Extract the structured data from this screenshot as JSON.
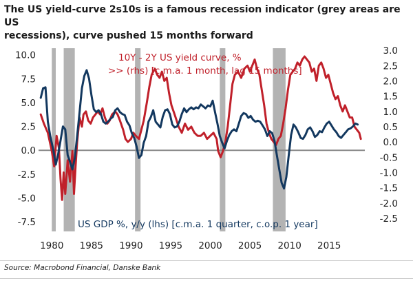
{
  "title_line1": "The US yield-curve 2s10s is a famous recession indicator (grey areas are US",
  "title_line2": "recessions), curve pushed 15 months forward",
  "source": "Source: Macrobond Financial, Danske Bank",
  "chart_data": {
    "type": "line",
    "x_ticks": [
      "1980",
      "1985",
      "1990",
      "1995",
      "2000",
      "2005",
      "2010",
      "2015"
    ],
    "xlim": [
      1978.5,
      2019.5
    ],
    "y_left": {
      "ylim": [
        -8.5,
        10.7
      ],
      "ticks": [
        "10.0",
        "7.5",
        "5.0",
        "2.5",
        "0.0",
        "-2.5",
        "-5.0",
        "-7.5"
      ]
    },
    "y_right": {
      "ylim": [
        -2.93,
        3.07
      ],
      "ticks": [
        "3.0",
        "2.5",
        "2.0",
        "1.5",
        "1.0",
        "0.5",
        "0.0",
        "-0.5",
        "-1.0",
        "-1.5",
        "-2.0",
        "-2.5"
      ]
    },
    "recessions": [
      [
        1980.0,
        1980.5
      ],
      [
        1981.5,
        1982.9
      ],
      [
        1990.5,
        1991.2
      ],
      [
        2001.2,
        2001.9
      ],
      [
        2007.9,
        2009.5
      ]
    ],
    "series": [
      {
        "name": "10Y - 2Y US yield curve, %",
        "legend_line1": "10Y - 2Y US yield curve, %",
        "legend_line2": ">> (rhs) [c.m.a. 1 month, lag 15 months]",
        "axis": "right",
        "color": "#c0202a",
        "points": [
          [
            1978.6,
            0.9
          ],
          [
            1979.0,
            0.6
          ],
          [
            1979.5,
            0.3
          ],
          [
            1980.0,
            -0.3
          ],
          [
            1980.3,
            -0.8
          ],
          [
            1980.6,
            0.2
          ],
          [
            1980.9,
            -0.2
          ],
          [
            1981.1,
            -1.2
          ],
          [
            1981.3,
            -1.9
          ],
          [
            1981.5,
            -1.0
          ],
          [
            1981.7,
            -1.7
          ],
          [
            1982.0,
            -0.6
          ],
          [
            1982.3,
            -1.3
          ],
          [
            1982.6,
            -0.3
          ],
          [
            1982.8,
            -1.7
          ],
          [
            1983.0,
            -0.8
          ],
          [
            1983.2,
            0.0
          ],
          [
            1983.5,
            0.8
          ],
          [
            1983.8,
            0.5
          ],
          [
            1984.0,
            0.9
          ],
          [
            1984.3,
            1.0
          ],
          [
            1984.6,
            0.7
          ],
          [
            1984.9,
            0.6
          ],
          [
            1985.2,
            0.8
          ],
          [
            1985.5,
            0.9
          ],
          [
            1985.8,
            1.0
          ],
          [
            1986.1,
            0.9
          ],
          [
            1986.4,
            1.1
          ],
          [
            1986.7,
            0.8
          ],
          [
            1987.0,
            0.6
          ],
          [
            1987.3,
            0.7
          ],
          [
            1987.6,
            0.9
          ],
          [
            1988.0,
            1.0
          ],
          [
            1988.3,
            0.9
          ],
          [
            1988.6,
            0.7
          ],
          [
            1989.0,
            0.4
          ],
          [
            1989.3,
            0.1
          ],
          [
            1989.6,
            0.0
          ],
          [
            1990.0,
            0.1
          ],
          [
            1990.3,
            0.3
          ],
          [
            1990.6,
            0.2
          ],
          [
            1991.0,
            0.1
          ],
          [
            1991.3,
            0.4
          ],
          [
            1991.6,
            0.7
          ],
          [
            1992.0,
            1.3
          ],
          [
            1992.3,
            1.8
          ],
          [
            1992.6,
            2.2
          ],
          [
            1993.0,
            2.4
          ],
          [
            1993.3,
            2.2
          ],
          [
            1993.6,
            2.1
          ],
          [
            1993.9,
            2.3
          ],
          [
            1994.2,
            2.0
          ],
          [
            1994.5,
            2.1
          ],
          [
            1994.8,
            1.6
          ],
          [
            1995.1,
            1.2
          ],
          [
            1995.5,
            0.9
          ],
          [
            1996.0,
            0.5
          ],
          [
            1996.4,
            0.3
          ],
          [
            1996.8,
            0.6
          ],
          [
            1997.2,
            0.4
          ],
          [
            1997.6,
            0.5
          ],
          [
            1998.0,
            0.3
          ],
          [
            1998.4,
            0.2
          ],
          [
            1998.8,
            0.2
          ],
          [
            1999.2,
            0.3
          ],
          [
            1999.6,
            0.1
          ],
          [
            2000.0,
            0.2
          ],
          [
            2000.4,
            0.3
          ],
          [
            2000.8,
            0.1
          ],
          [
            2001.0,
            -0.3
          ],
          [
            2001.3,
            -0.5
          ],
          [
            2001.6,
            -0.3
          ],
          [
            2001.9,
            0.0
          ],
          [
            2002.2,
            0.5
          ],
          [
            2002.5,
            1.2
          ],
          [
            2002.8,
            1.9
          ],
          [
            2003.1,
            2.2
          ],
          [
            2003.5,
            2.3
          ],
          [
            2003.9,
            2.1
          ],
          [
            2004.3,
            2.4
          ],
          [
            2004.7,
            2.5
          ],
          [
            2005.0,
            2.3
          ],
          [
            2005.3,
            2.5
          ],
          [
            2005.6,
            2.7
          ],
          [
            2005.9,
            2.4
          ],
          [
            2006.2,
            2.2
          ],
          [
            2006.5,
            1.7
          ],
          [
            2006.8,
            1.2
          ],
          [
            2007.1,
            0.6
          ],
          [
            2007.4,
            0.3
          ],
          [
            2007.7,
            0.1
          ],
          [
            2008.0,
            0.0
          ],
          [
            2008.3,
            -0.1
          ],
          [
            2008.6,
            0.1
          ],
          [
            2008.9,
            0.2
          ],
          [
            2009.2,
            0.6
          ],
          [
            2009.5,
            1.1
          ],
          [
            2009.8,
            1.7
          ],
          [
            2010.1,
            2.2
          ],
          [
            2010.4,
            2.3
          ],
          [
            2010.7,
            2.4
          ],
          [
            2011.0,
            2.6
          ],
          [
            2011.3,
            2.5
          ],
          [
            2011.6,
            2.7
          ],
          [
            2011.9,
            2.8
          ],
          [
            2012.2,
            2.7
          ],
          [
            2012.5,
            2.6
          ],
          [
            2012.8,
            2.3
          ],
          [
            2013.1,
            2.4
          ],
          [
            2013.4,
            2.0
          ],
          [
            2013.7,
            2.5
          ],
          [
            2014.0,
            2.6
          ],
          [
            2014.3,
            2.4
          ],
          [
            2014.6,
            2.1
          ],
          [
            2014.9,
            2.2
          ],
          [
            2015.2,
            1.9
          ],
          [
            2015.5,
            1.6
          ],
          [
            2015.8,
            1.4
          ],
          [
            2016.1,
            1.5
          ],
          [
            2016.4,
            1.2
          ],
          [
            2016.7,
            1.0
          ],
          [
            2017.0,
            1.2
          ],
          [
            2017.3,
            1.0
          ],
          [
            2017.6,
            0.8
          ],
          [
            2017.9,
            0.8
          ],
          [
            2018.2,
            0.5
          ],
          [
            2018.5,
            0.4
          ],
          [
            2018.8,
            0.3
          ],
          [
            2019.0,
            0.1
          ]
        ]
      },
      {
        "name": "US GDP %, y/y (lhs)",
        "legend_line1": "US GDP %, y/y (lhs) [c.m.a. 1 quarter, c.o.p. 1 year]",
        "axis": "left",
        "color": "#13385f",
        "points": [
          [
            1978.6,
            5.5
          ],
          [
            1978.9,
            6.5
          ],
          [
            1979.2,
            6.6
          ],
          [
            1979.5,
            3.0
          ],
          [
            1979.8,
            1.5
          ],
          [
            1980.2,
            0.0
          ],
          [
            1980.5,
            -1.5
          ],
          [
            1980.8,
            -0.4
          ],
          [
            1981.1,
            1.0
          ],
          [
            1981.4,
            2.5
          ],
          [
            1981.7,
            2.2
          ],
          [
            1982.0,
            -0.5
          ],
          [
            1982.3,
            -1.2
          ],
          [
            1982.6,
            -2.0
          ],
          [
            1982.9,
            -0.8
          ],
          [
            1983.2,
            1.5
          ],
          [
            1983.5,
            4.0
          ],
          [
            1983.8,
            6.5
          ],
          [
            1984.1,
            7.8
          ],
          [
            1984.4,
            8.4
          ],
          [
            1984.7,
            7.5
          ],
          [
            1985.0,
            5.8
          ],
          [
            1985.3,
            4.3
          ],
          [
            1985.6,
            4.0
          ],
          [
            1985.9,
            4.2
          ],
          [
            1986.2,
            3.8
          ],
          [
            1986.5,
            3.0
          ],
          [
            1986.8,
            2.8
          ],
          [
            1987.1,
            3.0
          ],
          [
            1987.4,
            3.3
          ],
          [
            1987.7,
            3.5
          ],
          [
            1988.0,
            4.2
          ],
          [
            1988.3,
            4.4
          ],
          [
            1988.6,
            4.0
          ],
          [
            1988.9,
            3.8
          ],
          [
            1989.2,
            3.7
          ],
          [
            1989.5,
            3.0
          ],
          [
            1989.8,
            2.6
          ],
          [
            1990.1,
            1.8
          ],
          [
            1990.4,
            1.3
          ],
          [
            1990.7,
            0.4
          ],
          [
            1991.0,
            -0.8
          ],
          [
            1991.3,
            -0.5
          ],
          [
            1991.6,
            0.8
          ],
          [
            1991.9,
            1.5
          ],
          [
            1992.2,
            3.0
          ],
          [
            1992.5,
            3.5
          ],
          [
            1992.8,
            4.2
          ],
          [
            1993.1,
            3.0
          ],
          [
            1993.4,
            2.7
          ],
          [
            1993.7,
            2.4
          ],
          [
            1994.0,
            3.5
          ],
          [
            1994.3,
            4.2
          ],
          [
            1994.6,
            4.3
          ],
          [
            1994.9,
            3.8
          ],
          [
            1995.2,
            2.7
          ],
          [
            1995.5,
            2.4
          ],
          [
            1995.8,
            2.5
          ],
          [
            1996.1,
            3.0
          ],
          [
            1996.4,
            3.8
          ],
          [
            1996.7,
            4.4
          ],
          [
            1997.0,
            4.0
          ],
          [
            1997.3,
            4.3
          ],
          [
            1997.6,
            4.5
          ],
          [
            1997.9,
            4.3
          ],
          [
            1998.2,
            4.5
          ],
          [
            1998.5,
            4.4
          ],
          [
            1998.8,
            4.8
          ],
          [
            1999.1,
            4.6
          ],
          [
            1999.4,
            4.4
          ],
          [
            1999.7,
            4.7
          ],
          [
            2000.0,
            4.6
          ],
          [
            2000.3,
            5.2
          ],
          [
            2000.6,
            4.0
          ],
          [
            2000.9,
            2.8
          ],
          [
            2001.2,
            1.5
          ],
          [
            2001.5,
            0.8
          ],
          [
            2001.8,
            0.2
          ],
          [
            2002.1,
            1.0
          ],
          [
            2002.4,
            1.6
          ],
          [
            2002.7,
            2.0
          ],
          [
            2003.0,
            2.2
          ],
          [
            2003.3,
            2.0
          ],
          [
            2003.6,
            2.8
          ],
          [
            2003.9,
            3.6
          ],
          [
            2004.2,
            3.9
          ],
          [
            2004.5,
            3.8
          ],
          [
            2004.8,
            3.4
          ],
          [
            2005.1,
            3.6
          ],
          [
            2005.4,
            3.2
          ],
          [
            2005.7,
            3.0
          ],
          [
            2006.0,
            3.1
          ],
          [
            2006.3,
            3.0
          ],
          [
            2006.6,
            2.6
          ],
          [
            2006.9,
            2.2
          ],
          [
            2007.2,
            1.5
          ],
          [
            2007.5,
            2.0
          ],
          [
            2007.8,
            1.8
          ],
          [
            2008.1,
            1.0
          ],
          [
            2008.4,
            -0.5
          ],
          [
            2008.7,
            -2.0
          ],
          [
            2009.0,
            -3.4
          ],
          [
            2009.3,
            -4.0
          ],
          [
            2009.6,
            -2.8
          ],
          [
            2009.9,
            -0.5
          ],
          [
            2010.2,
            1.6
          ],
          [
            2010.5,
            2.7
          ],
          [
            2010.8,
            2.4
          ],
          [
            2011.1,
            1.9
          ],
          [
            2011.4,
            1.3
          ],
          [
            2011.7,
            1.2
          ],
          [
            2012.0,
            1.6
          ],
          [
            2012.3,
            2.2
          ],
          [
            2012.6,
            2.4
          ],
          [
            2012.9,
            2.0
          ],
          [
            2013.2,
            1.4
          ],
          [
            2013.5,
            1.6
          ],
          [
            2013.8,
            2.0
          ],
          [
            2014.1,
            1.9
          ],
          [
            2014.4,
            2.4
          ],
          [
            2014.7,
            2.8
          ],
          [
            2015.0,
            3.0
          ],
          [
            2015.3,
            2.6
          ],
          [
            2015.6,
            2.2
          ],
          [
            2015.9,
            1.9
          ],
          [
            2016.2,
            1.5
          ],
          [
            2016.5,
            1.3
          ],
          [
            2016.8,
            1.6
          ],
          [
            2017.1,
            1.9
          ],
          [
            2017.4,
            2.2
          ],
          [
            2017.7,
            2.3
          ],
          [
            2018.0,
            2.5
          ],
          [
            2018.3,
            2.8
          ],
          [
            2018.6,
            2.7
          ]
        ]
      }
    ]
  }
}
